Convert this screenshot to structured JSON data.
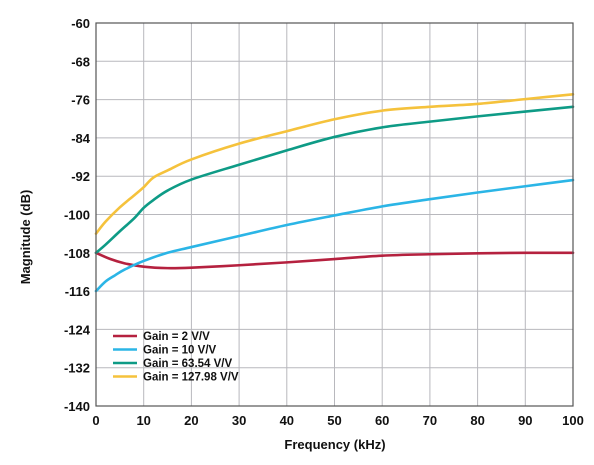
{
  "chart_data": {
    "type": "line",
    "title": "",
    "xlabel": "Frequency (kHz)",
    "ylabel": "Magnitude (dB)",
    "xlim": [
      0,
      100
    ],
    "ylim": [
      -140,
      -60
    ],
    "x_ticks": [
      0,
      10,
      20,
      30,
      40,
      50,
      60,
      70,
      80,
      90,
      100
    ],
    "y_ticks": [
      -60,
      -68,
      -76,
      -84,
      -92,
      -100,
      -108,
      -116,
      -124,
      -132,
      -140
    ],
    "grid": true,
    "legend_position": "bottom-left",
    "series": [
      {
        "name": "Gain = 2 V/V",
        "color": "#b5213f",
        "x": [
          0,
          3,
          6,
          10,
          15,
          20,
          30,
          40,
          50,
          60,
          70,
          80,
          90,
          100
        ],
        "y": [
          -108,
          -109.3,
          -110.2,
          -110.9,
          -111.2,
          -111.1,
          -110.6,
          -110,
          -109.3,
          -108.6,
          -108.3,
          -108.1,
          -108,
          -108
        ]
      },
      {
        "name": "Gain = 10 V/V",
        "color": "#2bb5e6",
        "x": [
          0,
          2,
          4,
          6,
          10,
          15,
          20,
          30,
          40,
          50,
          60,
          70,
          80,
          90,
          100
        ],
        "y": [
          -116,
          -114,
          -112.7,
          -111.5,
          -109.7,
          -108,
          -106.8,
          -104.5,
          -102.2,
          -100.2,
          -98.3,
          -96.8,
          -95.4,
          -94.1,
          -92.8
        ]
      },
      {
        "name": "Gain = 63.54 V/V",
        "color": "#0e9b86",
        "x": [
          0,
          2,
          5,
          8,
          10,
          12,
          15,
          20,
          30,
          40,
          50,
          60,
          70,
          80,
          90,
          100
        ],
        "y": [
          -108,
          -106.3,
          -103.5,
          -100.8,
          -98.6,
          -97,
          -95,
          -92.7,
          -89.6,
          -86.6,
          -83.8,
          -81.8,
          -80.6,
          -79.5,
          -78.5,
          -77.5
        ]
      },
      {
        "name": "Gain = 127.98 V/V",
        "color": "#f5c23c",
        "x": [
          0,
          2,
          5,
          8,
          10,
          12,
          15,
          20,
          30,
          40,
          50,
          60,
          70,
          80,
          90,
          100
        ],
        "y": [
          -104,
          -101.5,
          -98.5,
          -96,
          -94.3,
          -92.3,
          -90.8,
          -88.5,
          -85.2,
          -82.6,
          -80.1,
          -78.3,
          -77.5,
          -76.9,
          -75.9,
          -74.9
        ]
      }
    ]
  }
}
